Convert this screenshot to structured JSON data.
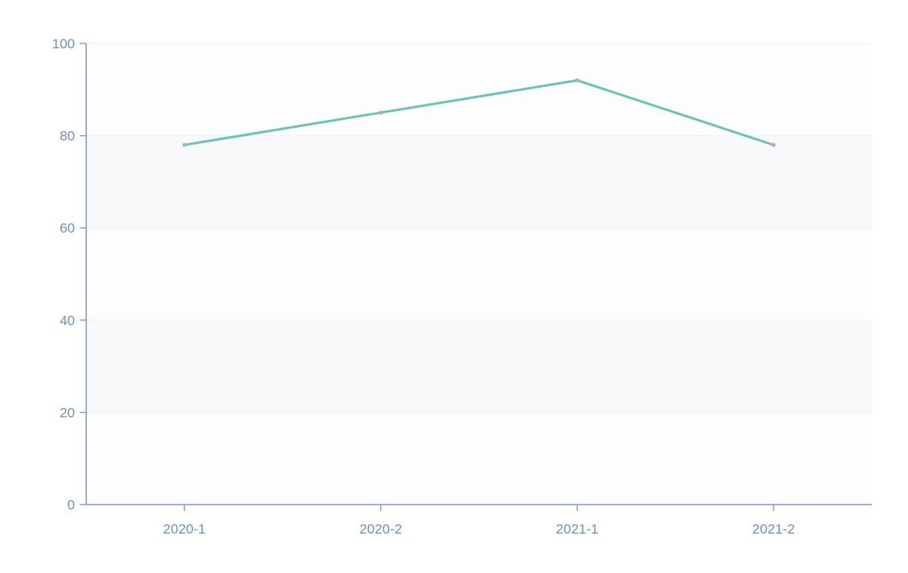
{
  "chart_data": {
    "type": "line",
    "title": "",
    "xlabel": "",
    "ylabel": "",
    "categories": [
      "2020-1",
      "2020-2",
      "2021-1",
      "2021-2"
    ],
    "series": [
      {
        "values": [
          78,
          85,
          92,
          78
        ],
        "color": "#6cc3b3"
      }
    ],
    "ylim": [
      0,
      100
    ],
    "yticks": [
      0,
      20,
      40,
      60,
      80,
      100
    ],
    "grid": true,
    "legend": "none"
  }
}
